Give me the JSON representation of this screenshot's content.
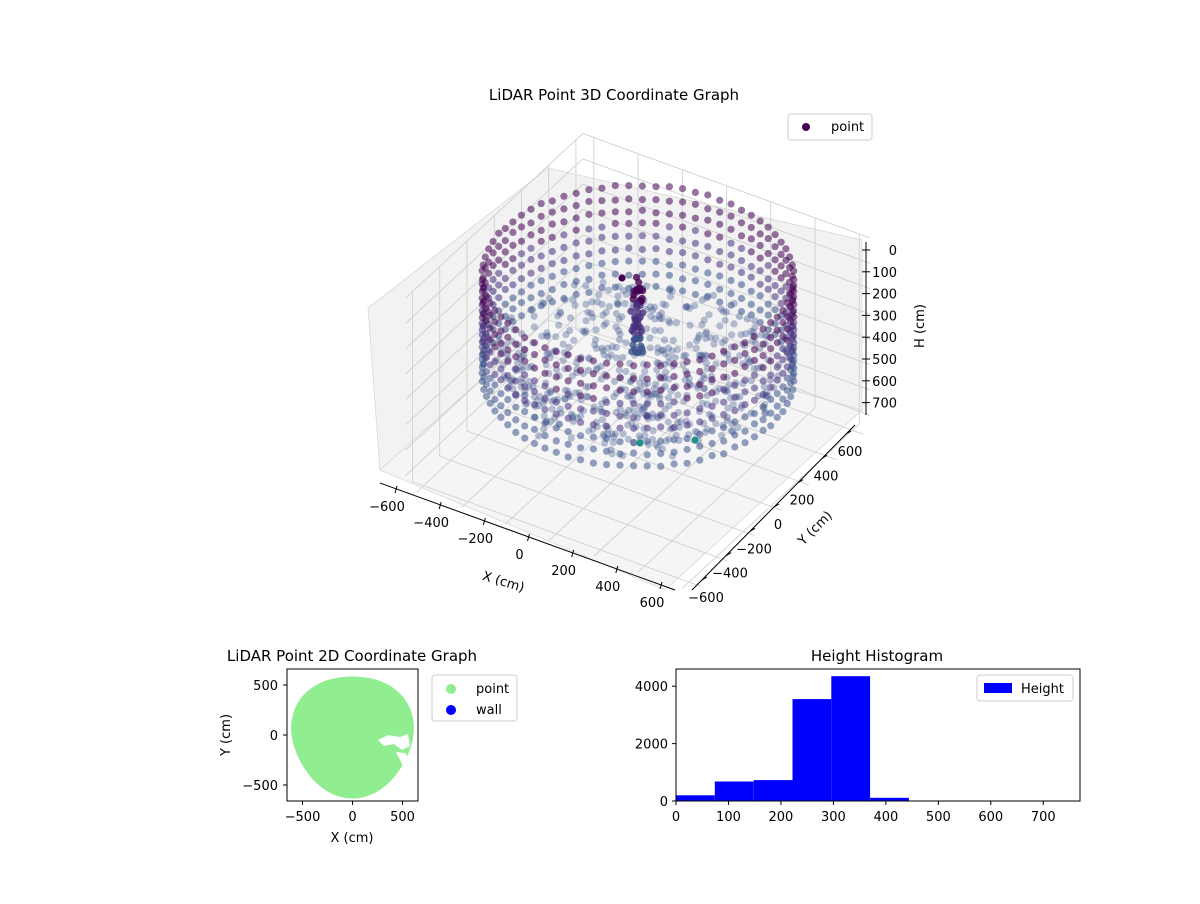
{
  "figure": {
    "chart3d_title": "LiDAR Point 3D Coordinate Graph",
    "chart2d_title": "LiDAR Point 2D Coordinate Graph",
    "histogram_title": "Height Histogram"
  },
  "colors": {
    "point_2d": "#90ee90",
    "wall": "#0000ff",
    "histogram_bar": "#0000ff",
    "viridis_dark": "#440154",
    "viridis_purple": "#472f7d",
    "viridis_blue": "#3b528b",
    "viridis_teal": "#2c728e",
    "viridis_green": "#21918c",
    "viridis_mint": "#28ae80",
    "pane": "#f2f2f2",
    "grid": "#cccccc"
  },
  "chart_data": [
    {
      "type": "scatter",
      "title": "LiDAR Point 3D Coordinate Graph",
      "xlabel": "X (cm)",
      "ylabel": "Y (cm)",
      "zlabel": "H (cm)",
      "xlim": [
        -650,
        650
      ],
      "ylim": [
        -650,
        650
      ],
      "zlim": [
        0,
        750
      ],
      "z_inverted": true,
      "x_ticks": [
        "−600",
        "−400",
        "−200",
        "0",
        "200",
        "400",
        "600"
      ],
      "y_ticks": [
        "−600",
        "−400",
        "−200",
        "0",
        "200",
        "400",
        "600"
      ],
      "z_ticks": [
        "0",
        "100",
        "200",
        "300",
        "400",
        "500",
        "600",
        "700"
      ],
      "legend": [
        {
          "name": "point",
          "color": "#440154"
        }
      ],
      "legend_position": "top-right",
      "grid": true,
      "colormap": "viridis"
    },
    {
      "type": "scatter",
      "title": "LiDAR Point 2D Coordinate Graph",
      "xlabel": "X (cm)",
      "ylabel": "Y (cm)",
      "xlim": [
        -650,
        650
      ],
      "ylim": [
        -650,
        650
      ],
      "x_ticks": [
        -500,
        0,
        500
      ],
      "y_ticks": [
        -500,
        0,
        500
      ],
      "x_tick_labels": [
        "−500",
        "0",
        "500"
      ],
      "y_tick_labels": [
        "−500",
        "0",
        "500"
      ],
      "series": [
        {
          "name": "point",
          "color": "#90ee90"
        },
        {
          "name": "wall",
          "color": "#0000ff"
        }
      ],
      "legend_position": "outside-right",
      "grid": false
    },
    {
      "type": "bar",
      "title": "Height Histogram",
      "xlim": [
        0,
        770
      ],
      "ylim": [
        0,
        4600
      ],
      "x_ticks": [
        0,
        100,
        200,
        300,
        400,
        500,
        600,
        700
      ],
      "y_ticks": [
        0,
        2000,
        4000
      ],
      "bin_edges": [
        0,
        74,
        148,
        222,
        296,
        370,
        444,
        518,
        592,
        666,
        740
      ],
      "values": [
        200,
        680,
        730,
        3550,
        4350,
        110,
        10,
        5,
        5,
        5
      ],
      "legend": [
        {
          "name": "Height",
          "color": "#0000ff"
        }
      ],
      "legend_position": "top-right",
      "grid": false
    }
  ]
}
